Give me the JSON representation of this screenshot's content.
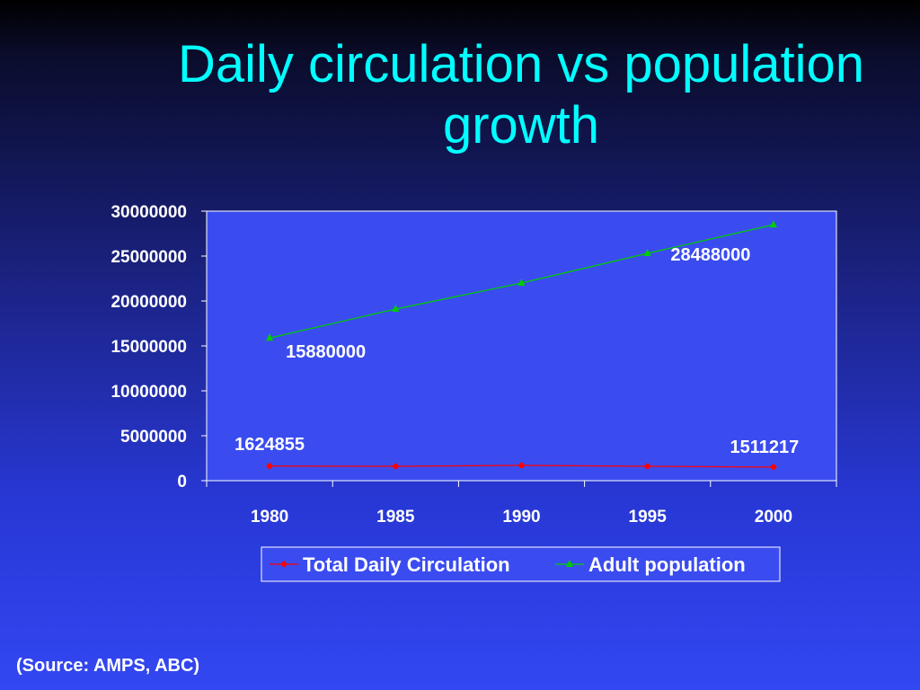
{
  "slide": {
    "title": "Daily circulation vs population growth",
    "source_note": "(Source: AMPS, ABC)"
  },
  "colors": {
    "title": "#00ffff",
    "series_circulation": "#ff0000",
    "series_population": "#00cc00",
    "axis": "#ffffff",
    "plot_background": "#3a4cf0"
  },
  "chart_data": {
    "type": "line",
    "title": "",
    "xlabel": "",
    "ylabel": "",
    "categories": [
      "1980",
      "1985",
      "1990",
      "1995",
      "2000"
    ],
    "ylim": [
      0,
      30000000
    ],
    "yticks": [
      0,
      5000000,
      10000000,
      15000000,
      20000000,
      25000000,
      30000000
    ],
    "grid": false,
    "legend_position": "bottom",
    "series": [
      {
        "name": "Total Daily Circulation",
        "marker": "diamond",
        "values": [
          1624855,
          1600000,
          1700000,
          1600000,
          1511217
        ],
        "data_labels": [
          {
            "index": 0,
            "text": "1624855"
          },
          {
            "index": 4,
            "text": "1511217"
          }
        ]
      },
      {
        "name": "Adult population",
        "marker": "triangle",
        "values": [
          15880000,
          19100000,
          22000000,
          25300000,
          28488000
        ],
        "data_labels": [
          {
            "index": 0,
            "text": "15880000"
          },
          {
            "index": 4,
            "text": "28488000"
          }
        ]
      }
    ]
  }
}
